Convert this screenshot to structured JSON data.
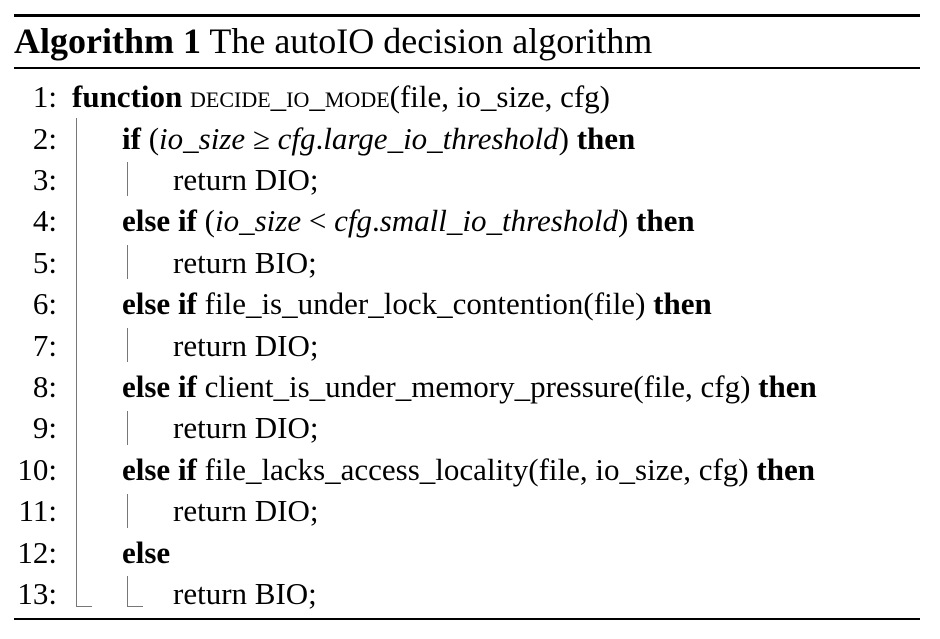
{
  "algorithm": {
    "label": "Algorithm 1",
    "title": "The autoIO decision algorithm"
  },
  "lines": [
    {
      "num": "1:",
      "parts": [
        {
          "t": "function",
          "kw": true
        },
        {
          "t": " "
        },
        {
          "t": "decide_io_mode",
          "sc": true
        },
        {
          "t": "(file, io_size, cfg)"
        }
      ]
    },
    {
      "num": "2:",
      "parts": [
        {
          "t": "if",
          "kw": true
        },
        {
          "t": " ("
        },
        {
          "t": "io_size",
          "it": true
        },
        {
          "t": " ≥ "
        },
        {
          "t": "cfg",
          "it": true
        },
        {
          "t": "."
        },
        {
          "t": "large_io_threshold",
          "it": true
        },
        {
          "t": ") "
        },
        {
          "t": "then",
          "kw": true
        }
      ]
    },
    {
      "num": "3:",
      "parts": [
        {
          "t": "return DIO;"
        }
      ]
    },
    {
      "num": "4:",
      "parts": [
        {
          "t": "else if",
          "kw": true
        },
        {
          "t": " ("
        },
        {
          "t": "io_size",
          "it": true
        },
        {
          "t": " < "
        },
        {
          "t": "cfg",
          "it": true
        },
        {
          "t": "."
        },
        {
          "t": "small_io_threshold",
          "it": true
        },
        {
          "t": ") "
        },
        {
          "t": "then",
          "kw": true
        }
      ]
    },
    {
      "num": "5:",
      "parts": [
        {
          "t": "return BIO;"
        }
      ]
    },
    {
      "num": "6:",
      "parts": [
        {
          "t": "else if",
          "kw": true
        },
        {
          "t": " file_is_under_lock_contention(file) "
        },
        {
          "t": "then",
          "kw": true
        }
      ]
    },
    {
      "num": "7:",
      "parts": [
        {
          "t": "return DIO;"
        }
      ]
    },
    {
      "num": "8:",
      "parts": [
        {
          "t": "else if",
          "kw": true
        },
        {
          "t": " client_is_under_memory_pressure(file, cfg) "
        },
        {
          "t": "then",
          "kw": true
        }
      ]
    },
    {
      "num": "9:",
      "parts": [
        {
          "t": "return DIO;"
        }
      ]
    },
    {
      "num": "10:",
      "parts": [
        {
          "t": "else if",
          "kw": true
        },
        {
          "t": " file_lacks_access_locality(file, io_size, cfg) "
        },
        {
          "t": "then",
          "kw": true
        }
      ]
    },
    {
      "num": "11:",
      "parts": [
        {
          "t": "return DIO;"
        }
      ]
    },
    {
      "num": "12:",
      "parts": [
        {
          "t": "else",
          "kw": true
        }
      ]
    },
    {
      "num": "13:",
      "parts": [
        {
          "t": "return BIO;"
        }
      ]
    }
  ]
}
